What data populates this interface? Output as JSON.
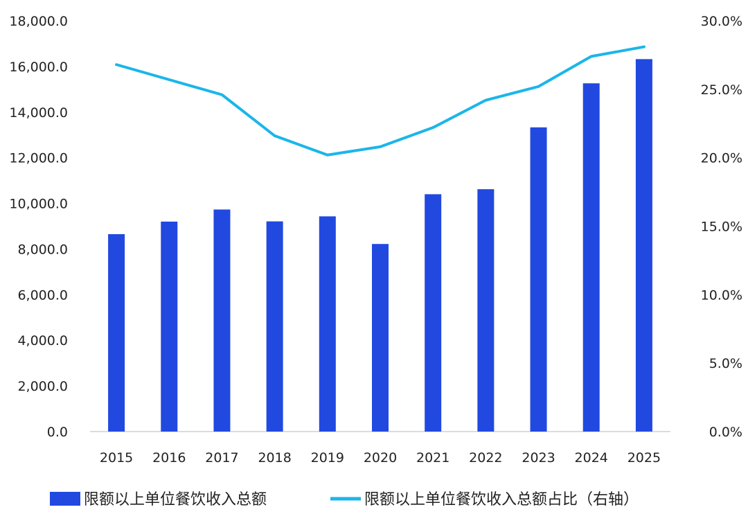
{
  "chart_data": {
    "type": "bar+line",
    "categories": [
      "2015",
      "2016",
      "2017",
      "2018",
      "2019",
      "2020",
      "2021",
      "2022",
      "2023",
      "2024",
      "2025"
    ],
    "series": [
      {
        "name": "限额以上单位餐饮收入总额",
        "type": "bar",
        "axis": "left",
        "color": "#2149e0",
        "values": [
          8650,
          9200,
          9730,
          9210,
          9430,
          8220,
          10400,
          10620,
          13330,
          15260,
          16320
        ]
      },
      {
        "name": "限额以上单位餐饮收入总额占比（右轴）",
        "type": "line",
        "axis": "right",
        "color": "#1ab6ea",
        "values": [
          26.8,
          25.7,
          24.6,
          21.6,
          20.2,
          20.8,
          22.2,
          24.2,
          25.2,
          27.4,
          28.1
        ]
      }
    ],
    "left_axis": {
      "ylim": [
        0,
        18000
      ],
      "ticks": [
        "0.0",
        "2,000.0",
        "4,000.0",
        "6,000.0",
        "8,000.0",
        "10,000.0",
        "12,000.0",
        "14,000.0",
        "16,000.0",
        "18,000.0"
      ]
    },
    "right_axis": {
      "ylim": [
        0,
        30
      ],
      "ticks": [
        "0.0%",
        "5.0%",
        "10.0%",
        "15.0%",
        "20.0%",
        "25.0%",
        "30.0%"
      ]
    },
    "grid": false,
    "legend_position": "bottom"
  }
}
